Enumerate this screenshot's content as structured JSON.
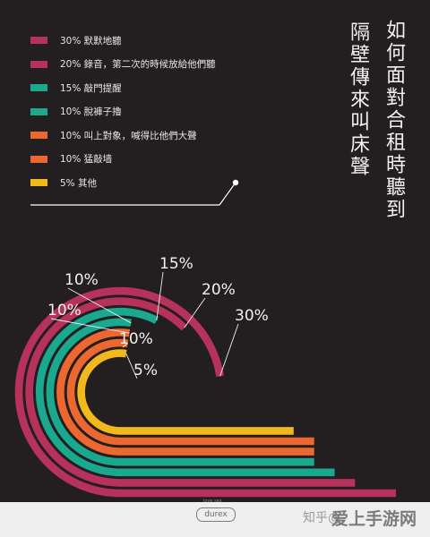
{
  "title": {
    "line1": "如何面對合租時聽到",
    "line2": "隔壁傳來叫床聲"
  },
  "legend": [
    {
      "label": "30% 默默地聽",
      "color": "#b6325c"
    },
    {
      "label": "20% 錄音，第二次的時候放給他們聽",
      "color": "#b6325c"
    },
    {
      "label": "15% 敲門提醒",
      "color": "#1aa88e"
    },
    {
      "label": "10% 脫褲子擼",
      "color": "#1aa88e"
    },
    {
      "label": "10% 叫上對象，喊得比他們大聲",
      "color": "#ec6830"
    },
    {
      "label": "10% 猛敲墙",
      "color": "#ec6830"
    },
    {
      "label": "5%  其他",
      "color": "#f2b81c"
    }
  ],
  "chart_data": {
    "type": "bar",
    "title": "如何面對合租時聽到隔壁傳來叫床聲",
    "categories": [
      "默默地聽",
      "錄音，第二次的時候放給他們聽",
      "敲門提醒",
      "脫褲子擼",
      "叫上對象，喊得比他們大聲",
      "猛敲墙",
      "其他"
    ],
    "values": [
      30,
      20,
      15,
      10,
      10,
      10,
      5
    ],
    "data_labels": [
      "30%",
      "20%",
      "15%",
      "10%",
      "10%",
      "10%",
      "5%"
    ],
    "colors": [
      "#b6325c",
      "#b6325c",
      "#1aa88e",
      "#1aa88e",
      "#ec6830",
      "#ec6830",
      "#f2b81c"
    ],
    "xlabel": "",
    "ylabel": ""
  },
  "footer": {
    "brand": "durex",
    "brand_tag": "love sex",
    "watermark_left": "知乎@",
    "watermark_right": "爱上手游网"
  }
}
